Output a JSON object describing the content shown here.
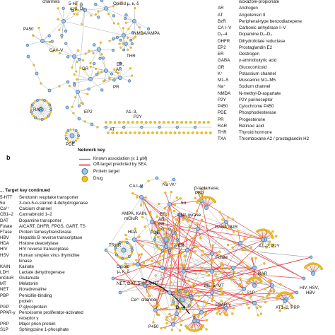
{
  "panel_b_letter": "b",
  "network_key": {
    "title": "Network key",
    "known": "Known association (≤ 1 µM)",
    "offtarget": "Off-target predicted by SEA",
    "protein": "Protein target",
    "drug": "Drug"
  },
  "target_key_top": [
    {
      "abbr": "",
      "full": "isoxazole-propionate"
    },
    {
      "abbr": "AR",
      "full": "Androgen"
    },
    {
      "abbr": "AT",
      "full": "Angiotensin II"
    },
    {
      "abbr": "BzR",
      "full": "Peripheral-type benzodiazepene"
    },
    {
      "abbr": "CA I–V",
      "full": "Carbonic anhydrase I–V"
    },
    {
      "abbr": "D₁–4",
      "full": "Dopamine D₁–D₄"
    },
    {
      "abbr": "DHFR",
      "full": "Dihydrofolate reductase"
    },
    {
      "abbr": "EP2",
      "full": "Prostaglandin E2"
    },
    {
      "abbr": "ER",
      "full": "Oestrogen"
    },
    {
      "abbr": "GABA",
      "full": "γ-aminobutyric acid"
    },
    {
      "abbr": "GR",
      "full": "Glucocorticoid"
    },
    {
      "abbr": "K⁺",
      "full": "Potassium channel"
    },
    {
      "abbr": "M1–5",
      "full": "Muscarinic M1–M5"
    },
    {
      "abbr": "Na⁺",
      "full": "Sodium channel"
    },
    {
      "abbr": "NMDA",
      "full": "N-methyl-D-aspartate"
    },
    {
      "abbr": "P2Y",
      "full": "P2Y purinoceptor"
    },
    {
      "abbr": "P450",
      "full": "Cytochrome P450"
    },
    {
      "abbr": "PDE",
      "full": "Phosphodiesterase"
    },
    {
      "abbr": "PR",
      "full": "Progesterone"
    },
    {
      "abbr": "RAR",
      "full": "Retinoic acid"
    },
    {
      "abbr": "THR",
      "full": "Thyroid hormone"
    },
    {
      "abbr": "TXA",
      "full": "Thromboxane A2 / prostaglandin H2"
    }
  ],
  "target_key_continued": {
    "title": "... Target key continued",
    "rows": [
      {
        "abbr": "5-HTT",
        "full": "Serotonin reuptake transporter"
      },
      {
        "abbr": "5α",
        "full": "3-oxo-5-α-steroid 4-dehydrogenase"
      },
      {
        "abbr": "Ca²⁺",
        "full": "Calcium channel"
      },
      {
        "abbr": "CB1–2",
        "full": "Cannabinoid 1–2"
      },
      {
        "abbr": "DAT",
        "full": "Dopamine transporter"
      },
      {
        "abbr": "Folate",
        "full": "AICART, DHFR, FPGS, GART, TS"
      },
      {
        "abbr": "FTase",
        "full": "Protein farnesyltransferase"
      },
      {
        "abbr": "HBV",
        "full": "Hepatitis B reverse transcriptase"
      },
      {
        "abbr": "HDA",
        "full": "Histone deacetylase"
      },
      {
        "abbr": "HIV",
        "full": "HIV reverse transcriptase"
      },
      {
        "abbr": "HSV",
        "full": "Human simplex virus thymidine"
      },
      {
        "abbr": "",
        "full": "kinase"
      },
      {
        "abbr": "KAIN",
        "full": "Kainate"
      },
      {
        "abbr": "LDH",
        "full": "Lactate dehydrogenase"
      },
      {
        "abbr": "mGluR",
        "full": "Glutamate"
      },
      {
        "abbr": "MT",
        "full": "Melatonin"
      },
      {
        "abbr": "NET",
        "full": "Noradrenaline"
      },
      {
        "abbr": "PBP",
        "full": "Penicillin-binding"
      },
      {
        "abbr": "",
        "full": "protein"
      },
      {
        "abbr": "PGP",
        "full": "P-glycoprotein"
      },
      {
        "abbr": "PPAR-γ",
        "full": "Peroxisome proliferator-activated"
      },
      {
        "abbr": "",
        "full": "receptor γ"
      },
      {
        "abbr": "PRP",
        "full": "Major prion protein"
      },
      {
        "abbr": "S1P",
        "full": "Sphingosine 1-phosphate"
      }
    ]
  },
  "panel_a_labels": {
    "channels": "channels",
    "ht": "5-HT",
    "ht_sub": "α, β, D₂",
    "opioid": "Opioid µ, κ, δ",
    "p450": "P450",
    "nmda": "NMDA/AMPA",
    "ca": "CA I–V",
    "thr": "THR",
    "gr": "GR",
    "er": "ER,",
    "ar": "AR",
    "pr": "PR",
    "rar": "RAR",
    "ep2": "EP2",
    "a13": "A1–3,",
    "p2y": "P2Y",
    "at": "AT",
    "pde": "PDE"
  },
  "panel_b_labels": {
    "ca": "CA I–V",
    "nak": "Na⁺/K⁺",
    "blact": "β-lactamase,",
    "pbp": "PBP",
    "ha": "5α",
    "dna": "DNA gyrase",
    "ampa": "AMPA, KAIN,",
    "mglur": "mGluR",
    "er": "ER,",
    "ar": "AR,",
    "pr": "PR",
    "gaba": "GABA, BzR",
    "hda": "HDA",
    "pde": "PDE",
    "trhr": "TRHR",
    "er2": "ER",
    "a12": "A1–2, P2Y",
    "folate": "Folate",
    "opioid": "Opioid",
    "opioid_sub": "µ, κ, δ",
    "rar": "RAR",
    "net": "NET, DAT, 5-HT, 5-HT",
    "m15": "M1–5, MT",
    "s1p": "S1P",
    "ca2": "Ca²⁺ channel",
    "ppar": "PPAR-γ",
    "d14": "D₁–4",
    "alpha": "α",
    "hiv": "HIV, HSV,",
    "hbv": "HBV",
    "at12": "AT1–2, PRP",
    "p450": "P450"
  },
  "colors": {
    "known_edge": "#8e8e8e",
    "offtarget_edge": "#e3262f",
    "protein_fill": "#9ec6ea",
    "protein_stroke": "#3f6fa8",
    "drug_fill": "#f4c21c",
    "drug_stroke": "#b08400"
  }
}
